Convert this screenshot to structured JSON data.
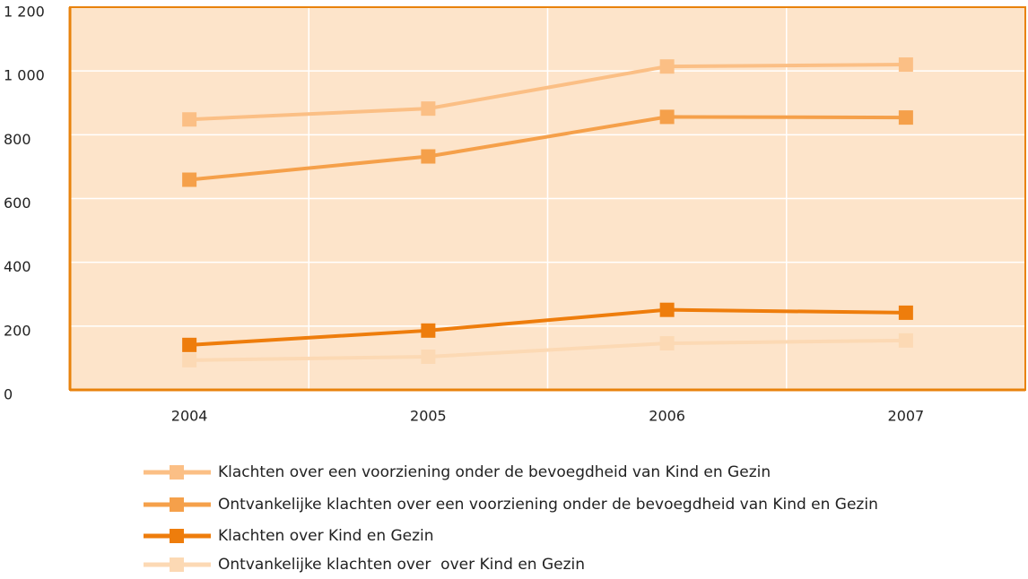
{
  "chart_data": {
    "type": "line",
    "categories": [
      "2004",
      "2005",
      "2006",
      "2007"
    ],
    "series": [
      {
        "name": "Klachten over een voorziening onder de bevoegdheid van Kind en Gezin",
        "color": "#fbbf85",
        "values": [
          848,
          882,
          1014,
          1020
        ]
      },
      {
        "name": "Ontvankelijke klachten over een voorziening onder de bevoegdheid van Kind en Gezin",
        "color": "#f5a04a",
        "values": [
          659,
          732,
          856,
          854
        ]
      },
      {
        "name": "Klachten over Kind en Gezin",
        "color": "#ee7d0c",
        "values": [
          141,
          186,
          251,
          242
        ]
      },
      {
        "name": "Ontvankelijke klachten over  over Kind en Gezin",
        "color": "#fcd9b4",
        "values": [
          93,
          104,
          146,
          155
        ]
      }
    ],
    "ylim": [
      0,
      1200
    ],
    "yticks": [
      0,
      200,
      400,
      600,
      800,
      {
        "value": 1000,
        "label": "1 000"
      },
      {
        "value": 1200,
        "label": "1 200"
      }
    ],
    "grid": true
  }
}
